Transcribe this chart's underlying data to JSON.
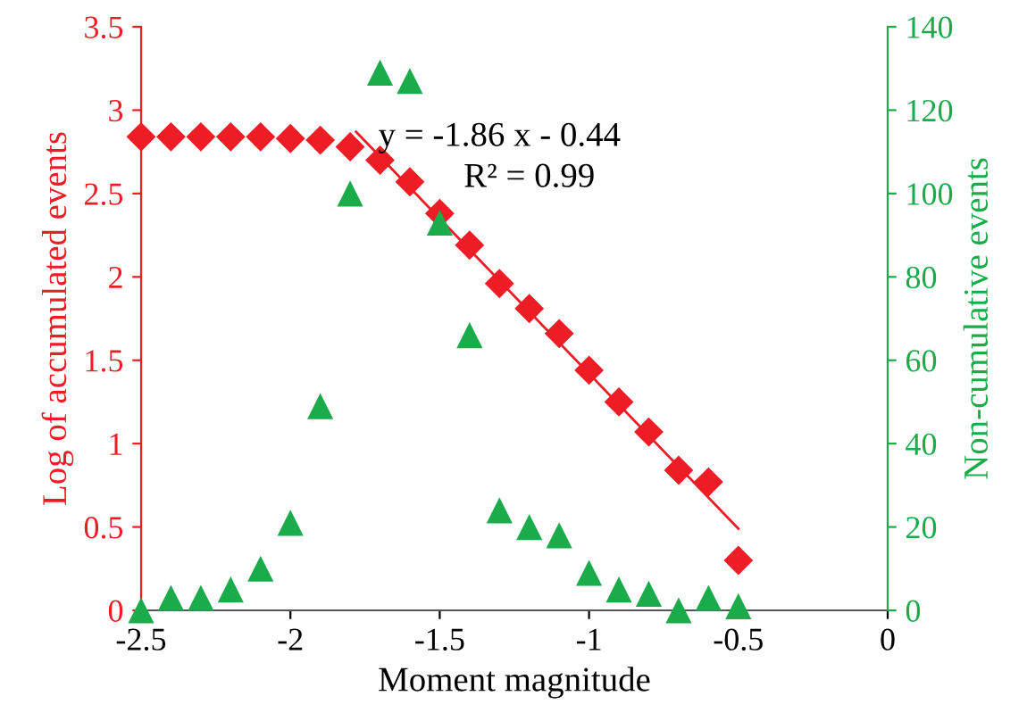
{
  "chart_data": {
    "type": "scatter",
    "xlabel": "Moment magnitude",
    "ylabel": "Log of accumulated events",
    "y2label": "Non-cumulative events",
    "x": [
      -2.5,
      -2.4,
      -2.3,
      -2.2,
      -2.1,
      -2.0,
      -1.9,
      -1.8,
      -1.7,
      -1.6,
      -1.5,
      -1.4,
      -1.3,
      -1.2,
      -1.1,
      -1.0,
      -0.9,
      -0.8,
      -0.7,
      -0.6,
      -0.5
    ],
    "series": [
      {
        "color": "#ee1c25",
        "marker": "diamond",
        "values": [
          2.84,
          2.84,
          2.84,
          2.84,
          2.84,
          2.83,
          2.82,
          2.78,
          2.7,
          2.57,
          2.38,
          2.19,
          1.96,
          1.81,
          1.66,
          1.44,
          1.25,
          1.07,
          0.84,
          0.77,
          0.3
        ]
      },
      {
        "color": "#1aab4b",
        "marker": "triangle",
        "axis": "y2",
        "values": [
          0,
          3,
          3,
          5,
          10,
          21,
          49,
          100,
          129,
          127,
          93,
          66,
          24,
          20,
          18,
          9,
          5,
          4,
          0,
          3,
          1
        ]
      },
      {
        "type": "line",
        "color": "#ee1c25",
        "x": [
          -1.78,
          -0.5
        ],
        "values": [
          2.87,
          0.49
        ]
      }
    ],
    "xlim": [
      -2.5,
      0
    ],
    "xticks": [
      -2.5,
      -2,
      -1.5,
      -1,
      -0.5,
      0
    ],
    "ylim": [
      0,
      3.5
    ],
    "yticks": [
      0,
      0.5,
      1,
      1.5,
      2,
      2.5,
      3,
      3.5
    ],
    "y2lim": [
      0,
      140
    ],
    "y2ticks": [
      0,
      20,
      40,
      60,
      80,
      100,
      120,
      140
    ],
    "grid": false,
    "legend": false,
    "annotations": [
      "y = -1.86 x - 0.44",
      "R² = 0.99"
    ]
  }
}
